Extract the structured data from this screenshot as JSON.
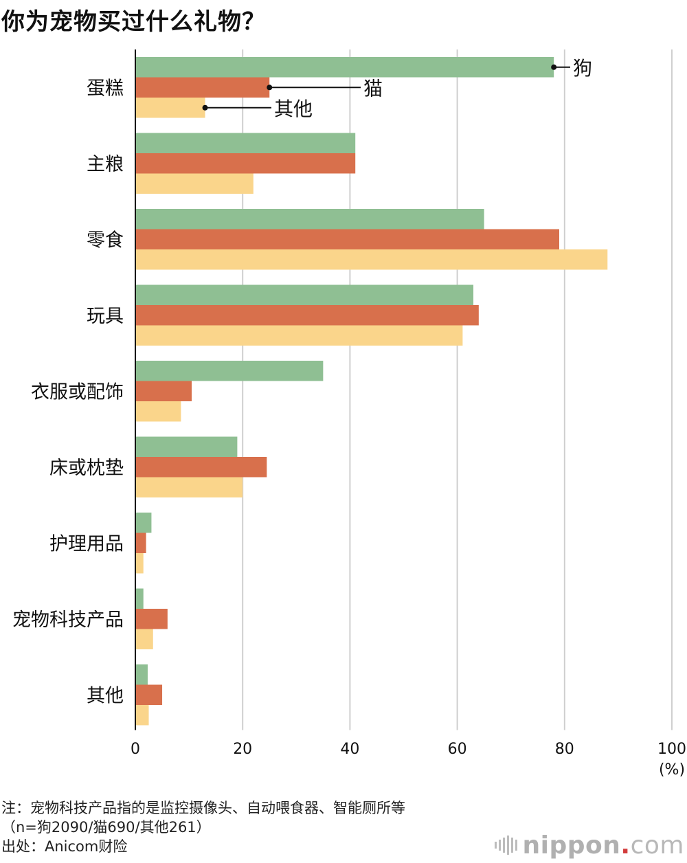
{
  "title": "你为宠物买过什么礼物？",
  "chart_data": {
    "type": "bar",
    "orientation": "horizontal",
    "categories": [
      "蛋糕",
      "主粮",
      "零食",
      "玩具",
      "衣服或配饰",
      "床或枕垫",
      "护理用品",
      "宠物科技产品",
      "其他"
    ],
    "series": [
      {
        "name": "狗",
        "color": "#8fbf93",
        "values": [
          78,
          41,
          65,
          63,
          35,
          19,
          3,
          1.5,
          2.3
        ]
      },
      {
        "name": "猫",
        "color": "#d8704c",
        "values": [
          25,
          41,
          79,
          64,
          10.5,
          24.5,
          2,
          6,
          5
        ]
      },
      {
        "name": "其他",
        "color": "#fad58b",
        "values": [
          13,
          22,
          88,
          61,
          8.5,
          20,
          1.5,
          3.3,
          2.5
        ]
      }
    ],
    "xlim": [
      0,
      100
    ],
    "xticks": [
      0,
      20,
      40,
      60,
      80,
      100
    ],
    "xunit": "(%)",
    "grid": true,
    "legend": "inline labels on first category"
  },
  "notes": {
    "note": "注：宠物科技产品指的是监控摄像头、自动喂食器、智能厕所等",
    "sample": "（n=狗2090/猫690/其他261）",
    "source": "出处：Anicom财险"
  },
  "logo": {
    "main": "nippon",
    "dot": ".",
    "suffix": "com"
  }
}
